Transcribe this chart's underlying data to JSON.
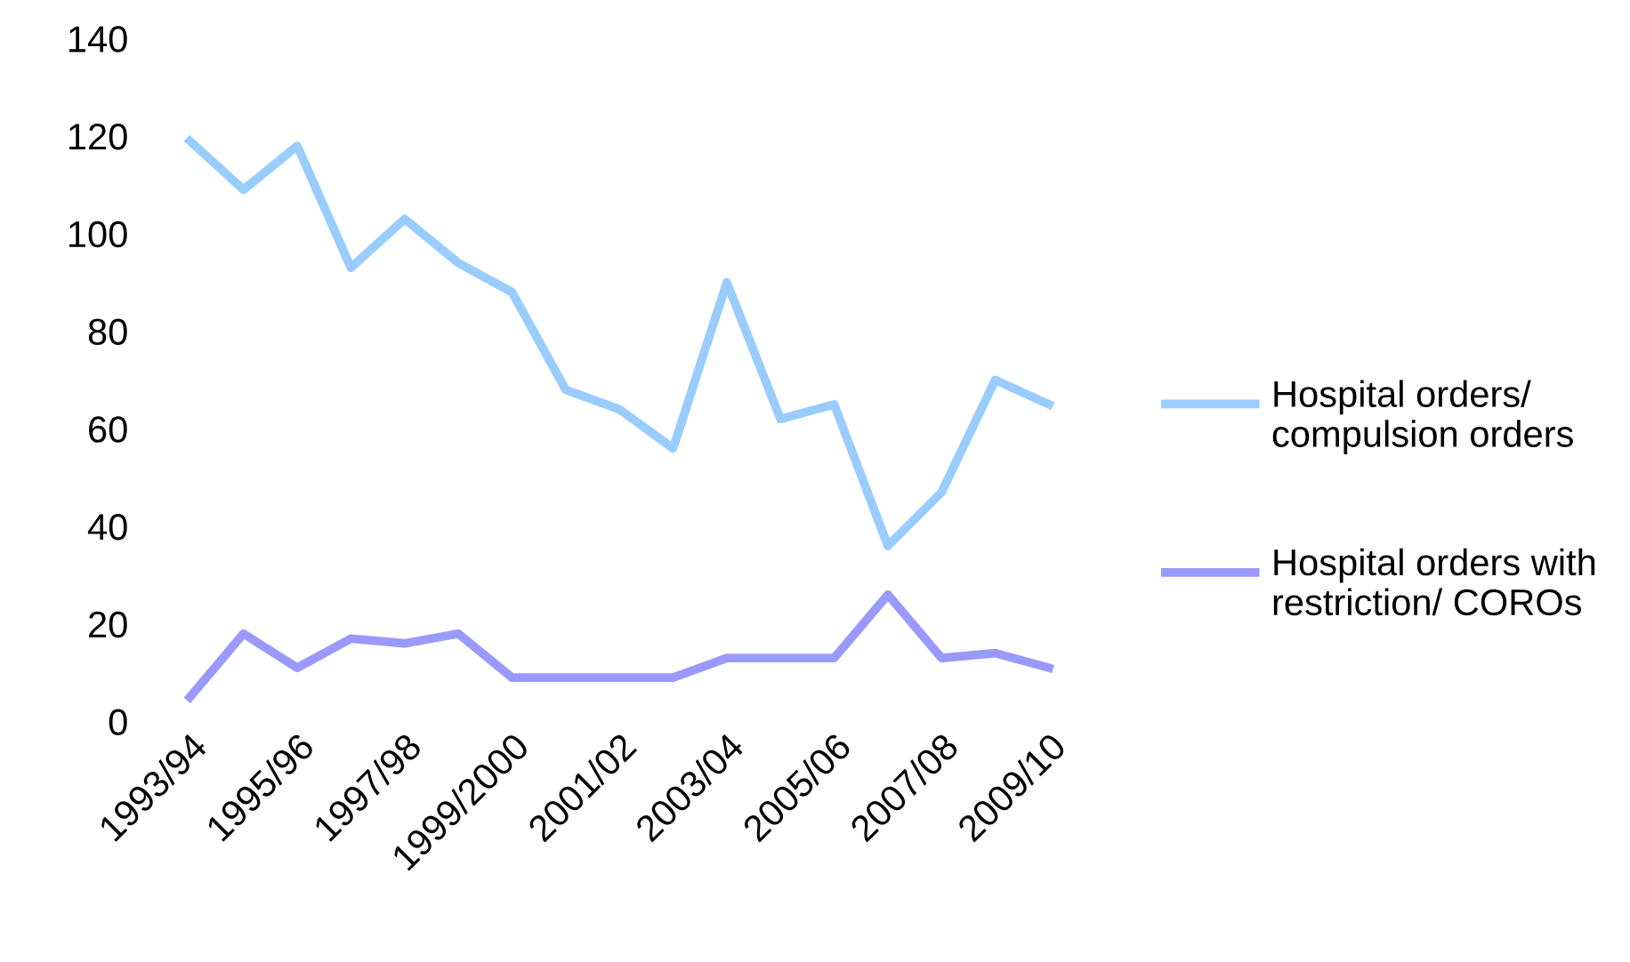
{
  "chart_data": {
    "type": "line",
    "categories": [
      "1993/94",
      null,
      "1995/96",
      null,
      "1997/98",
      null,
      "1999/2000",
      null,
      "2001/02",
      null,
      "2003/04",
      null,
      "2005/06",
      null,
      "2007/08",
      null,
      "2009/10"
    ],
    "series": [
      {
        "name": "Hospital orders/ compulsion orders",
        "color": "#99ccff",
        "values": [
          119,
          109,
          118,
          93,
          103,
          94,
          88,
          68,
          64,
          56,
          90,
          62,
          65,
          36,
          47,
          70,
          65
        ]
      },
      {
        "name": "Hospital orders with restriction/ COROs",
        "color": "#9999ff",
        "values": [
          5,
          18,
          11,
          17,
          16,
          18,
          9,
          9,
          9,
          9,
          13,
          13,
          13,
          26,
          13,
          14,
          11
        ]
      }
    ],
    "ylim": [
      0,
      140
    ],
    "yticks": [
      0,
      20,
      40,
      60,
      80,
      100,
      120,
      140
    ],
    "grid": false,
    "legend": "right",
    "marker": "none",
    "line_style": "solid"
  }
}
